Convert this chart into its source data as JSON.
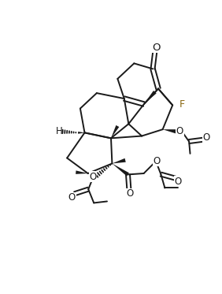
{
  "bg_color": "#ffffff",
  "line_color": "#1a1a1a",
  "F_color": "#8B6914",
  "figsize": [
    2.82,
    3.73
  ],
  "dpi": 100,
  "ring_A": [
    [
      5.8,
      11.6
    ],
    [
      6.55,
      12.3
    ],
    [
      7.4,
      12.05
    ],
    [
      7.65,
      11.15
    ],
    [
      7.0,
      10.45
    ],
    [
      6.1,
      10.7
    ]
  ],
  "ring_B": [
    [
      4.1,
      10.25
    ],
    [
      4.85,
      10.95
    ],
    [
      6.1,
      10.7
    ],
    [
      6.3,
      9.55
    ],
    [
      5.5,
      8.9
    ],
    [
      4.3,
      9.15
    ]
  ],
  "ring_C": [
    [
      6.3,
      9.55
    ],
    [
      7.0,
      10.45
    ],
    [
      7.65,
      11.15
    ],
    [
      8.3,
      10.4
    ],
    [
      7.85,
      9.3
    ],
    [
      6.9,
      9.0
    ]
  ],
  "ring_D": [
    [
      4.3,
      9.15
    ],
    [
      5.5,
      8.9
    ],
    [
      5.55,
      7.75
    ],
    [
      4.45,
      7.3
    ],
    [
      3.5,
      8.0
    ]
  ],
  "O_ketone": [
    7.5,
    12.85
  ],
  "xlim": [
    0.5,
    10.5
  ],
  "ylim": [
    3.5,
    13.5
  ]
}
